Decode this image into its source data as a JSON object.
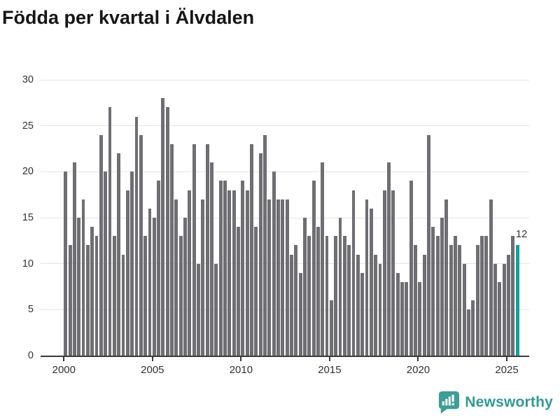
{
  "title": "Födda per kvartal i Älvdalen",
  "colors": {
    "bar": "#6E6E73",
    "highlight": "#10A29C",
    "grid": "#E4E4E4",
    "axis": "#3A3A3A",
    "text": "#333333",
    "title_text": "#161616",
    "logo_teal": "#2F9B93"
  },
  "y_axis": {
    "ticks": [
      0,
      5,
      10,
      15,
      20,
      25,
      30
    ]
  },
  "x_axis": {
    "ticks": [
      "2000",
      "2005",
      "2010",
      "2015",
      "2020",
      "2025"
    ]
  },
  "highlight": {
    "label": "12"
  },
  "logo": {
    "text": "Newsworthy",
    "icon": "bar-chart-speech-bubble"
  },
  "chart_data": {
    "type": "bar",
    "title": "Födda per kvartal i Älvdalen",
    "frequency": "quarterly",
    "x_start": "2000 Q1",
    "x_end": "2025 Q3",
    "xlabel": "",
    "ylabel": "",
    "ylim": [
      0,
      30
    ],
    "grid": "horizontal",
    "values": [
      20,
      12,
      21,
      15,
      17,
      12,
      14,
      13,
      24,
      20,
      27,
      13,
      22,
      11,
      18,
      20,
      26,
      24,
      13,
      16,
      15,
      19,
      28,
      27,
      23,
      17,
      13,
      15,
      18,
      23,
      10,
      17,
      23,
      21,
      10,
      19,
      19,
      18,
      18,
      14,
      19,
      18,
      23,
      14,
      22,
      24,
      17,
      20,
      17,
      17,
      17,
      11,
      12,
      9,
      15,
      13,
      19,
      14,
      21,
      13,
      6,
      13,
      15,
      13,
      12,
      18,
      11,
      9,
      17,
      16,
      11,
      10,
      18,
      21,
      18,
      9,
      8,
      8,
      19,
      12,
      8,
      11,
      24,
      14,
      13,
      15,
      17,
      12,
      13,
      12,
      10,
      5,
      6,
      12,
      13,
      13,
      17,
      10,
      8,
      10,
      11,
      13,
      12
    ],
    "highlight_index": 102,
    "highlight_value": 12
  }
}
